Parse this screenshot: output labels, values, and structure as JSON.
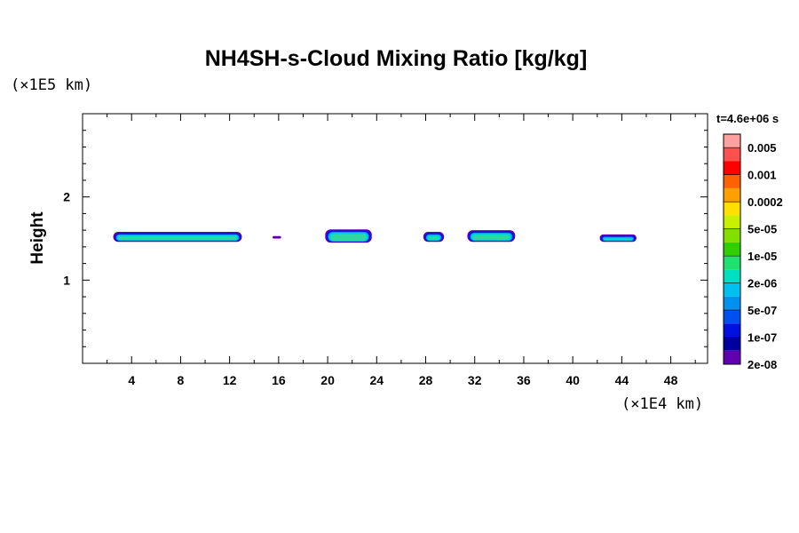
{
  "chart_data": {
    "type": "contour",
    "title": "NH4SH-s-Cloud Mixing Ratio [kg/kg]",
    "ylabel": "Height",
    "x_unit": "(×1E4 km)",
    "y_unit": "(×1E5 km)",
    "xlim": [
      0,
      51
    ],
    "ylim": [
      0,
      3
    ],
    "xticks": [
      "4",
      "8",
      "12",
      "16",
      "20",
      "24",
      "28",
      "32",
      "36",
      "40",
      "44",
      "48"
    ],
    "xtick_values": [
      4,
      8,
      12,
      16,
      20,
      24,
      28,
      32,
      36,
      40,
      44,
      48
    ],
    "yticks": [
      "1",
      "2"
    ],
    "ytick_values": [
      1,
      2
    ],
    "time_label": "t=4.6e+06 s",
    "colorbar": {
      "levels": [
        "0.005",
        "0.001",
        "0.0002",
        "5e-05",
        "1e-05",
        "2e-06",
        "5e-07",
        "1e-07",
        "2e-08"
      ],
      "colors": [
        "#ffa0a0",
        "#ff5050",
        "#ff0000",
        "#ff6000",
        "#ffa000",
        "#ffe000",
        "#c8f000",
        "#80e000",
        "#30d000",
        "#20e070",
        "#00e0c0",
        "#00c0f0",
        "#0090f0",
        "#0050f0",
        "#0010e0",
        "#0000a0",
        "#6000b0"
      ]
    },
    "cloud_patches": [
      {
        "x_start": 2.5,
        "x_end": 13.0,
        "y_bottom": 1.46,
        "y_top": 1.58
      },
      {
        "x_start": 15.5,
        "x_end": 16.2,
        "y_bottom": 1.5,
        "y_top": 1.53
      },
      {
        "x_start": 19.8,
        "x_end": 23.6,
        "y_bottom": 1.45,
        "y_top": 1.61
      },
      {
        "x_start": 27.8,
        "x_end": 29.5,
        "y_bottom": 1.46,
        "y_top": 1.58
      },
      {
        "x_start": 31.4,
        "x_end": 35.3,
        "y_bottom": 1.46,
        "y_top": 1.6
      },
      {
        "x_start": 42.2,
        "x_end": 45.2,
        "y_bottom": 1.46,
        "y_top": 1.55
      }
    ]
  }
}
